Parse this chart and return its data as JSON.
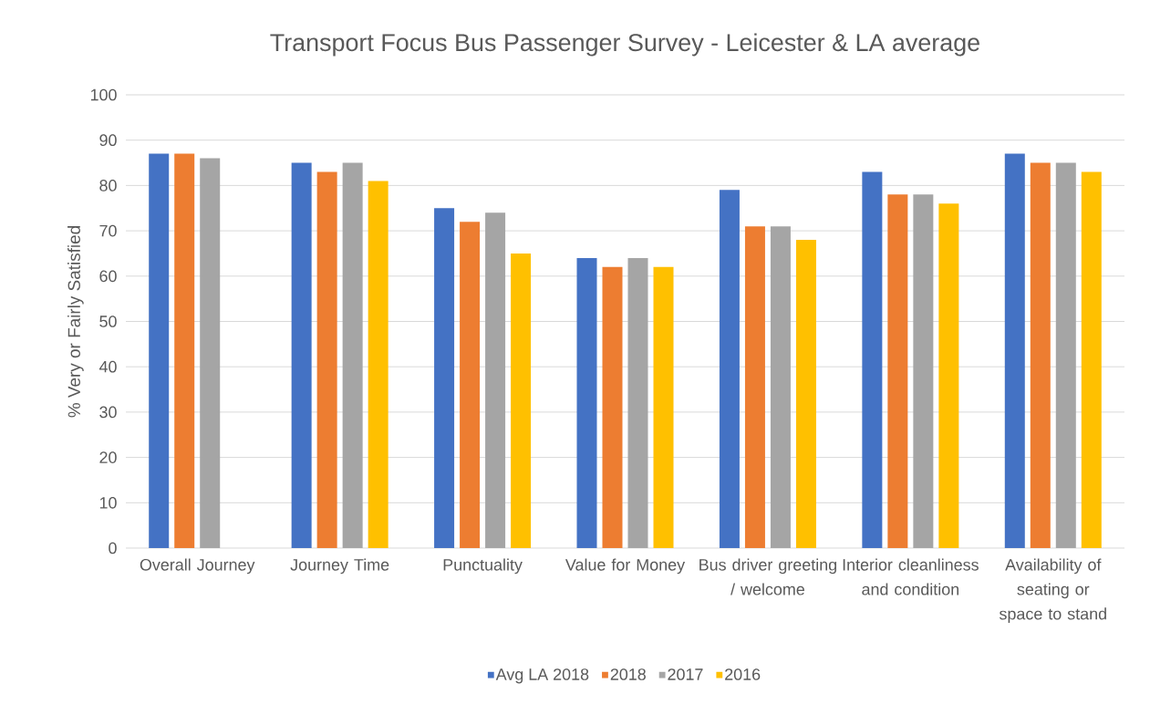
{
  "chart_data": {
    "type": "bar",
    "title": "Transport Focus Bus Passenger Survey - Leicester & LA average",
    "ylabel": "% Very or Fairly Satisfied",
    "categories": [
      "Overall Journey",
      "Journey Time",
      "Punctuality",
      "Value for Money",
      "Bus driver greeting / welcome",
      "Interior cleanliness and condition",
      "Availability of seating or space to stand"
    ],
    "series": [
      {
        "name": "Avg LA 2018",
        "color": "#4472c4",
        "values": [
          87,
          85,
          75,
          64,
          79,
          83,
          87
        ]
      },
      {
        "name": "2018",
        "color": "#ed7d31",
        "values": [
          87,
          83,
          72,
          62,
          71,
          78,
          85
        ]
      },
      {
        "name": "2017",
        "color": "#a5a5a5",
        "values": [
          86,
          85,
          74,
          64,
          71,
          78,
          85
        ]
      },
      {
        "name": "2016",
        "color": "#ffc000",
        "values": [
          null,
          81,
          65,
          62,
          68,
          76,
          83
        ]
      }
    ],
    "ylim": [
      0,
      100
    ],
    "yticks": [
      0,
      10,
      20,
      30,
      40,
      50,
      60,
      70,
      80,
      90,
      100
    ],
    "grid": "y",
    "legend": "bottom"
  }
}
